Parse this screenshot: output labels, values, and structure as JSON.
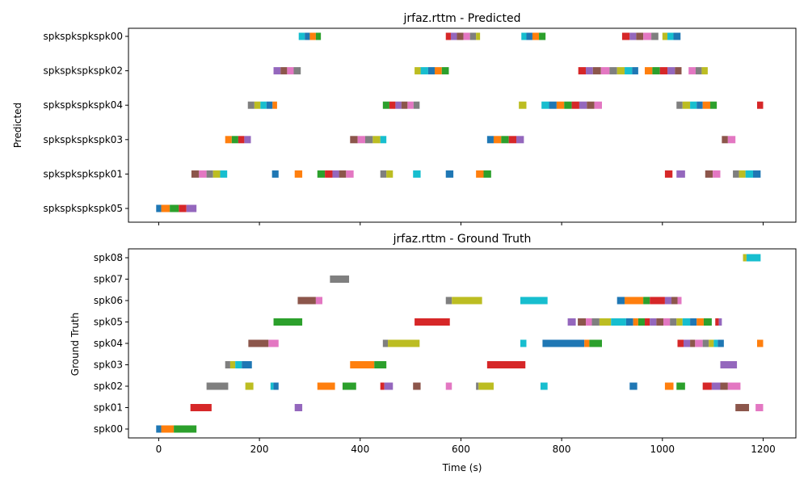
{
  "colors": [
    "#1f77b4",
    "#ff7f0e",
    "#2ca02c",
    "#d62728",
    "#9467bd",
    "#8c564b",
    "#e377c2",
    "#7f7f7f",
    "#bcbd22",
    "#17becf"
  ],
  "chart_data": [
    {
      "type": "bar",
      "title": "jrfaz.rttm - Predicted",
      "xlabel": "",
      "ylabel": "Predicted",
      "xlim": [
        -60,
        1265
      ],
      "xticks": [
        0,
        200,
        400,
        600,
        800,
        1000,
        1200
      ],
      "show_xtick_labels": false,
      "categories": [
        "spkspkspkspk05",
        "spkspkspkspk01",
        "spkspkspkspk03",
        "spkspkspkspk04",
        "spkspkspkspk02",
        "spkspkspkspk00"
      ],
      "segments": {
        "spkspkspkspk00": [
          [
            278,
            290
          ],
          [
            290,
            300
          ],
          [
            300,
            312
          ],
          [
            312,
            322
          ],
          [
            570,
            580
          ],
          [
            580,
            592
          ],
          [
            592,
            605
          ],
          [
            605,
            618
          ],
          [
            618,
            630
          ],
          [
            630,
            638
          ],
          [
            720,
            730
          ],
          [
            730,
            742
          ],
          [
            742,
            755
          ],
          [
            755,
            768
          ],
          [
            920,
            935
          ],
          [
            935,
            948
          ],
          [
            948,
            962
          ],
          [
            962,
            978
          ],
          [
            978,
            992
          ],
          [
            1000,
            1010
          ],
          [
            1010,
            1022
          ],
          [
            1022,
            1036
          ]
        ],
        "spkspkspkspk02": [
          [
            228,
            242
          ],
          [
            242,
            255
          ],
          [
            255,
            268
          ],
          [
            268,
            282
          ],
          [
            508,
            520
          ],
          [
            520,
            535
          ],
          [
            535,
            548
          ],
          [
            548,
            562
          ],
          [
            562,
            576
          ],
          [
            833,
            848
          ],
          [
            848,
            862
          ],
          [
            862,
            878
          ],
          [
            878,
            895
          ],
          [
            895,
            910
          ],
          [
            910,
            925
          ],
          [
            925,
            940
          ],
          [
            940,
            952
          ],
          [
            965,
            980
          ],
          [
            980,
            995
          ],
          [
            995,
            1010
          ],
          [
            1010,
            1025
          ],
          [
            1025,
            1038
          ],
          [
            1052,
            1066
          ],
          [
            1066,
            1078
          ],
          [
            1078,
            1090
          ]
        ],
        "spkspkspkspk04": [
          [
            177,
            190
          ],
          [
            190,
            202
          ],
          [
            202,
            214
          ],
          [
            214,
            226
          ],
          [
            226,
            235
          ],
          [
            445,
            458
          ],
          [
            458,
            470
          ],
          [
            470,
            482
          ],
          [
            482,
            494
          ],
          [
            494,
            506
          ],
          [
            506,
            518
          ],
          [
            715,
            730
          ],
          [
            760,
            775
          ],
          [
            775,
            790
          ],
          [
            790,
            805
          ],
          [
            805,
            820
          ],
          [
            820,
            835
          ],
          [
            835,
            850
          ],
          [
            850,
            865
          ],
          [
            865,
            880
          ],
          [
            1028,
            1040
          ],
          [
            1040,
            1055
          ],
          [
            1055,
            1068
          ],
          [
            1068,
            1080
          ],
          [
            1080,
            1095
          ],
          [
            1095,
            1108
          ],
          [
            1188,
            1200
          ]
        ],
        "spkspkspkspk03": [
          [
            132,
            145
          ],
          [
            145,
            158
          ],
          [
            158,
            170
          ],
          [
            170,
            183
          ],
          [
            380,
            395
          ],
          [
            395,
            410
          ],
          [
            410,
            425
          ],
          [
            425,
            440
          ],
          [
            440,
            452
          ],
          [
            652,
            665
          ],
          [
            665,
            680
          ],
          [
            680,
            695
          ],
          [
            695,
            710
          ],
          [
            710,
            725
          ],
          [
            1118,
            1130
          ],
          [
            1130,
            1145
          ]
        ],
        "spkspkspkspk01": [
          [
            65,
            80
          ],
          [
            80,
            95
          ],
          [
            95,
            108
          ],
          [
            108,
            122
          ],
          [
            122,
            136
          ],
          [
            225,
            238
          ],
          [
            270,
            285
          ],
          [
            315,
            330
          ],
          [
            330,
            345
          ],
          [
            345,
            358
          ],
          [
            358,
            372
          ],
          [
            372,
            387
          ],
          [
            440,
            452
          ],
          [
            452,
            465
          ],
          [
            505,
            520
          ],
          [
            570,
            585
          ],
          [
            630,
            645
          ],
          [
            645,
            660
          ],
          [
            1005,
            1020
          ],
          [
            1028,
            1045
          ],
          [
            1085,
            1100
          ],
          [
            1100,
            1115
          ],
          [
            1140,
            1152
          ],
          [
            1152,
            1165
          ],
          [
            1165,
            1180
          ],
          [
            1180,
            1195
          ]
        ],
        "spkspkspkspk05": [
          [
            -5,
            5
          ],
          [
            5,
            22
          ],
          [
            22,
            40
          ],
          [
            40,
            55
          ],
          [
            55,
            75
          ]
        ]
      }
    },
    {
      "type": "bar",
      "title": "jrfaz.rttm - Ground Truth",
      "xlabel": "Time (s)",
      "ylabel": "Ground Truth",
      "xlim": [
        -60,
        1265
      ],
      "xticks": [
        0,
        200,
        400,
        600,
        800,
        1000,
        1200
      ],
      "show_xtick_labels": true,
      "categories": [
        "spk00",
        "spk01",
        "spk02",
        "spk03",
        "spk04",
        "spk05",
        "spk06",
        "spk07",
        "spk08"
      ],
      "segments": {
        "spk08": [
          [
            1160,
            1167
          ],
          [
            1167,
            1195
          ]
        ],
        "spk07": [
          [
            340,
            378
          ]
        ],
        "spk06": [
          [
            276,
            312
          ],
          [
            312,
            325
          ],
          [
            570,
            582
          ],
          [
            582,
            642
          ],
          [
            718,
            772
          ],
          [
            910,
            925
          ],
          [
            925,
            962
          ],
          [
            962,
            975
          ],
          [
            975,
            1005
          ],
          [
            1005,
            1018
          ],
          [
            1018,
            1030
          ],
          [
            1030,
            1038
          ]
        ],
        "spk05": [
          [
            228,
            285
          ],
          [
            508,
            578
          ],
          [
            812,
            828
          ],
          [
            832,
            848
          ],
          [
            848,
            860
          ],
          [
            860,
            875
          ],
          [
            875,
            898
          ],
          [
            898,
            928
          ],
          [
            928,
            942
          ],
          [
            942,
            952
          ],
          [
            952,
            965
          ],
          [
            965,
            975
          ],
          [
            975,
            988
          ],
          [
            988,
            1002
          ],
          [
            1002,
            1015
          ],
          [
            1015,
            1028
          ],
          [
            1028,
            1040
          ],
          [
            1040,
            1055
          ],
          [
            1055,
            1068
          ],
          [
            1068,
            1082
          ],
          [
            1082,
            1098
          ],
          [
            1105,
            1112
          ],
          [
            1112,
            1118
          ]
        ],
        "spk04": [
          [
            178,
            218
          ],
          [
            218,
            238
          ],
          [
            445,
            455
          ],
          [
            455,
            518
          ],
          [
            718,
            730
          ],
          [
            762,
            845
          ],
          [
            845,
            855
          ],
          [
            855,
            880
          ],
          [
            1030,
            1042
          ],
          [
            1042,
            1055
          ],
          [
            1055,
            1065
          ],
          [
            1065,
            1080
          ],
          [
            1080,
            1092
          ],
          [
            1092,
            1102
          ],
          [
            1102,
            1110
          ],
          [
            1110,
            1122
          ],
          [
            1188,
            1200
          ]
        ],
        "spk03": [
          [
            132,
            142
          ],
          [
            142,
            152
          ],
          [
            152,
            165
          ],
          [
            165,
            185
          ],
          [
            380,
            428
          ],
          [
            428,
            452
          ],
          [
            652,
            728
          ],
          [
            1115,
            1148
          ]
        ],
        "spk02": [
          [
            95,
            138
          ],
          [
            172,
            188
          ],
          [
            222,
            228
          ],
          [
            228,
            238
          ],
          [
            315,
            350
          ],
          [
            365,
            392
          ],
          [
            440,
            448
          ],
          [
            448,
            465
          ],
          [
            505,
            520
          ],
          [
            570,
            582
          ],
          [
            630,
            635
          ],
          [
            635,
            665
          ],
          [
            758,
            772
          ],
          [
            935,
            950
          ],
          [
            1005,
            1022
          ],
          [
            1028,
            1045
          ],
          [
            1080,
            1098
          ],
          [
            1098,
            1115
          ],
          [
            1115,
            1130
          ],
          [
            1130,
            1155
          ]
        ],
        "spk01": [
          [
            63,
            105
          ],
          [
            270,
            285
          ],
          [
            1145,
            1172
          ],
          [
            1185,
            1200
          ]
        ],
        "spk00": [
          [
            -5,
            5
          ],
          [
            5,
            30
          ],
          [
            30,
            75
          ]
        ]
      }
    }
  ]
}
